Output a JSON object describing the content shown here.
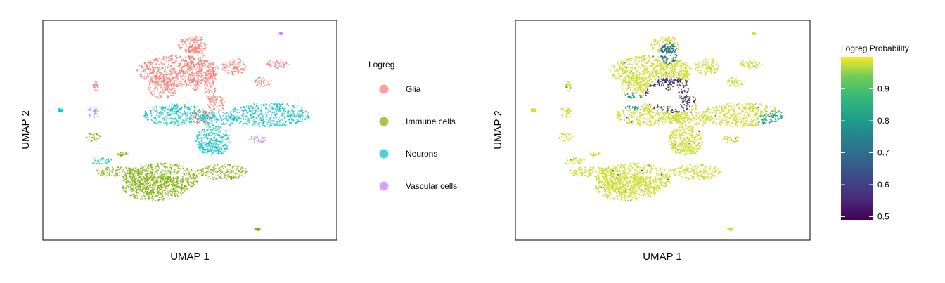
{
  "chart_data": [
    {
      "type": "scatter",
      "xlabel": "UMAP 1",
      "ylabel": "UMAP 2",
      "axis_ticks": false,
      "grid": false,
      "legend": {
        "title": "Logreg",
        "placement": "right",
        "entries": [
          {
            "label": "Glia",
            "color": "#F8766D"
          },
          {
            "label": "Immune cells",
            "color": "#7CAE00"
          },
          {
            "label": "Neurons",
            "color": "#00BFC4"
          },
          {
            "label": "Vascular cells",
            "color": "#C77CFF"
          }
        ]
      },
      "clusters": [
        {
          "category": "Glia",
          "color": "#F8766D",
          "regions": [
            {
              "cx": 0.51,
              "cy": 0.89,
              "rx": 0.05,
              "ry": 0.04
            },
            {
              "cx": 0.46,
              "cy": 0.77,
              "rx": 0.14,
              "ry": 0.07
            },
            {
              "cx": 0.52,
              "cy": 0.8,
              "rx": 0.03,
              "ry": 0.12
            },
            {
              "cx": 0.41,
              "cy": 0.7,
              "rx": 0.05,
              "ry": 0.06
            },
            {
              "cx": 0.57,
              "cy": 0.71,
              "rx": 0.02,
              "ry": 0.08
            },
            {
              "cx": 0.59,
              "cy": 0.62,
              "rx": 0.03,
              "ry": 0.04
            },
            {
              "cx": 0.65,
              "cy": 0.79,
              "rx": 0.04,
              "ry": 0.04
            },
            {
              "cx": 0.8,
              "cy": 0.8,
              "rx": 0.04,
              "ry": 0.02
            },
            {
              "cx": 0.75,
              "cy": 0.72,
              "rx": 0.03,
              "ry": 0.025
            },
            {
              "cx": 0.54,
              "cy": 0.56,
              "rx": 0.04,
              "ry": 0.03
            },
            {
              "cx": 0.18,
              "cy": 0.7,
              "rx": 0.01,
              "ry": 0.02
            }
          ]
        },
        {
          "category": "Neurons",
          "color": "#00BFC4",
          "regions": [
            {
              "cx": 0.45,
              "cy": 0.57,
              "rx": 0.11,
              "ry": 0.05
            },
            {
              "cx": 0.77,
              "cy": 0.57,
              "rx": 0.14,
              "ry": 0.055
            },
            {
              "cx": 0.6,
              "cy": 0.55,
              "rx": 0.06,
              "ry": 0.035
            },
            {
              "cx": 0.58,
              "cy": 0.46,
              "rx": 0.06,
              "ry": 0.06
            },
            {
              "cx": 0.58,
              "cy": 0.42,
              "rx": 0.05,
              "ry": 0.035
            },
            {
              "cx": 0.06,
              "cy": 0.59,
              "rx": 0.012,
              "ry": 0.008
            },
            {
              "cx": 0.2,
              "cy": 0.36,
              "rx": 0.04,
              "ry": 0.015
            }
          ]
        },
        {
          "category": "Immune cells",
          "color": "#7CAE00",
          "regions": [
            {
              "cx": 0.4,
              "cy": 0.28,
              "rx": 0.13,
              "ry": 0.07
            },
            {
              "cx": 0.38,
              "cy": 0.24,
              "rx": 0.11,
              "ry": 0.06
            },
            {
              "cx": 0.61,
              "cy": 0.31,
              "rx": 0.09,
              "ry": 0.035
            },
            {
              "cx": 0.26,
              "cy": 0.31,
              "rx": 0.08,
              "ry": 0.025
            },
            {
              "cx": 0.17,
              "cy": 0.47,
              "rx": 0.025,
              "ry": 0.02
            },
            {
              "cx": 0.73,
              "cy": 0.05,
              "rx": 0.01,
              "ry": 0.006
            },
            {
              "cx": 0.27,
              "cy": 0.39,
              "rx": 0.02,
              "ry": 0.01
            }
          ]
        },
        {
          "category": "Vascular cells",
          "color": "#C77CFF",
          "regions": [
            {
              "cx": 0.17,
              "cy": 0.58,
              "rx": 0.02,
              "ry": 0.03
            },
            {
              "cx": 0.73,
              "cy": 0.46,
              "rx": 0.03,
              "ry": 0.018
            },
            {
              "cx": 0.81,
              "cy": 0.94,
              "rx": 0.006,
              "ry": 0.006
            }
          ]
        }
      ]
    },
    {
      "type": "scatter",
      "xlabel": "UMAP 1",
      "ylabel": "UMAP 2",
      "axis_ticks": false,
      "grid": false,
      "colorbar": {
        "title": "Logreg Probability",
        "placement": "right",
        "scale": "viridis",
        "range": [
          0.49,
          1.0
        ],
        "ticks": [
          0.5,
          0.6,
          0.7,
          0.8,
          0.9
        ]
      },
      "probability_regions": [
        {
          "cx": 0.53,
          "cy": 0.66,
          "rx": 0.09,
          "ry": 0.08,
          "value": 0.58
        },
        {
          "cx": 0.52,
          "cy": 0.85,
          "rx": 0.03,
          "ry": 0.05,
          "value": 0.72
        },
        {
          "cx": 0.88,
          "cy": 0.55,
          "rx": 0.06,
          "ry": 0.04,
          "value": 0.85
        },
        {
          "cx": 0.4,
          "cy": 0.63,
          "rx": 0.04,
          "ry": 0.04,
          "value": 0.8
        }
      ],
      "default_probability": 0.98
    }
  ]
}
